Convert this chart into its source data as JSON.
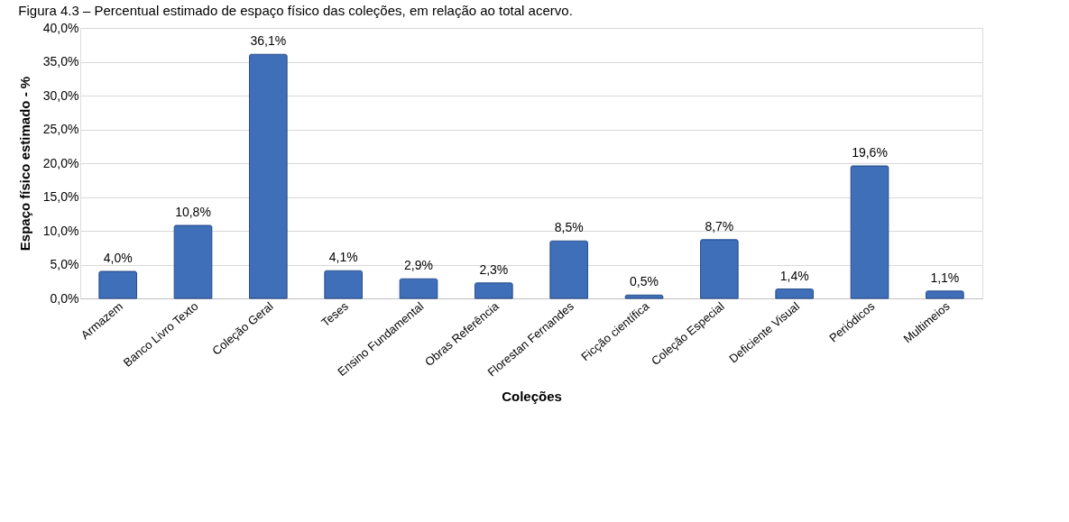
{
  "chart_data": {
    "type": "bar",
    "title": "Figura 4.3 – Percentual estimado de espaço físico das coleções, em relação ao total acervo.",
    "xlabel": "Coleções",
    "ylabel": "Espaço físico estimado  - %",
    "categories": [
      "Armazem",
      "Banco Livro Texto",
      "Coleção Geral",
      "Teses",
      "Ensino Fundamental",
      "Obras Referência",
      "Florestan Fernandes",
      "Ficção científica",
      "Coleção Especial",
      "Deficiente Visual",
      "Periódicos",
      "Multimeios"
    ],
    "values": [
      4.0,
      10.8,
      36.1,
      4.1,
      2.9,
      2.3,
      8.5,
      0.5,
      8.7,
      1.4,
      19.6,
      1.1
    ],
    "value_labels": [
      "4,0%",
      "10,8%",
      "36,1%",
      "4,1%",
      "2,9%",
      "2,3%",
      "8,5%",
      "0,5%",
      "8,7%",
      "1,4%",
      "19,6%",
      "1,1%"
    ],
    "color": "#3f6fb8",
    "ylim": [
      0,
      40
    ],
    "yticks": [
      {
        "value": 0,
        "label": "0,0%"
      },
      {
        "value": 5,
        "label": "5,0%"
      },
      {
        "value": 10,
        "label": "10,0%"
      },
      {
        "value": 15,
        "label": "15,0%"
      },
      {
        "value": 20,
        "label": "20,0%"
      },
      {
        "value": 25,
        "label": "25,0%"
      },
      {
        "value": 30,
        "label": "30,0%"
      },
      {
        "value": 35,
        "label": "35,0%"
      },
      {
        "value": 40,
        "label": "40,0%"
      }
    ],
    "grid": "y"
  }
}
